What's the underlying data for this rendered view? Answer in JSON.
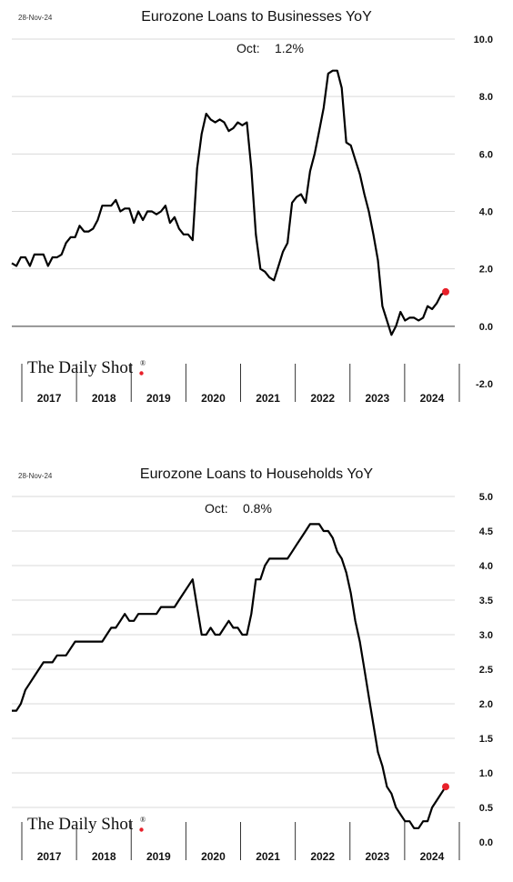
{
  "charts": [
    {
      "date": "28-Nov-24",
      "title": "Eurozone Loans to Businesses YoY",
      "latest_label": "Oct:",
      "latest_value": "1.2%",
      "logo": "The Daily Shot",
      "logo_mark": "®"
    },
    {
      "date": "28-Nov-24",
      "title": "Eurozone Loans to Households YoY",
      "latest_label": "Oct:",
      "latest_value": "0.8%",
      "logo": "The Daily Shot",
      "logo_mark": "®"
    }
  ],
  "colors": {
    "line": "#000000",
    "marker": "#e8202a",
    "grid": "#d9d9d9"
  },
  "chart_data": [
    {
      "type": "line",
      "title": "Eurozone Loans to Businesses YoY",
      "x_categories": [
        "2017",
        "2018",
        "2019",
        "2020",
        "2021",
        "2022",
        "2023",
        "2024"
      ],
      "ylim": [
        -2.0,
        10.0
      ],
      "y_ticks": [
        "-2.0",
        "0.0",
        "2.0",
        "4.0",
        "6.0",
        "8.0",
        "10.0"
      ],
      "grid": true,
      "series": [
        {
          "start": "2016-09",
          "frequency": "monthly",
          "values": [
            2.2,
            2.1,
            2.4,
            2.4,
            2.1,
            2.5,
            2.5,
            2.5,
            2.1,
            2.4,
            2.4,
            2.5,
            2.9,
            3.1,
            3.1,
            3.5,
            3.3,
            3.3,
            3.4,
            3.7,
            4.2,
            4.2,
            4.2,
            4.4,
            4.0,
            4.1,
            4.1,
            3.6,
            4.0,
            3.7,
            4.0,
            4.0,
            3.9,
            4.0,
            4.2,
            3.6,
            3.8,
            3.4,
            3.2,
            3.2,
            3.0,
            5.5,
            6.7,
            7.4,
            7.2,
            7.1,
            7.2,
            7.1,
            6.8,
            6.9,
            7.1,
            7.0,
            7.1,
            5.5,
            3.2,
            2.0,
            1.9,
            1.7,
            1.6,
            2.1,
            2.6,
            2.9,
            4.3,
            4.5,
            4.6,
            4.3,
            5.4,
            6.0,
            6.8,
            7.6,
            8.8,
            8.9,
            8.9,
            8.3,
            6.4,
            6.3,
            5.8,
            5.3,
            4.6,
            4.0,
            3.2,
            2.3,
            0.7,
            0.2,
            -0.3,
            0.0,
            0.5,
            0.2,
            0.3,
            0.3,
            0.2,
            0.3,
            0.7,
            0.6,
            0.8,
            1.1,
            1.2
          ]
        }
      ],
      "latest_point": {
        "x": "2024-10",
        "y": 1.2
      }
    },
    {
      "type": "line",
      "title": "Eurozone Loans to Households YoY",
      "x_categories": [
        "2017",
        "2018",
        "2019",
        "2020",
        "2021",
        "2022",
        "2023",
        "2024"
      ],
      "ylim": [
        0.0,
        5.0
      ],
      "y_ticks": [
        "0.0",
        "0.5",
        "1.0",
        "1.5",
        "2.0",
        "2.5",
        "3.0",
        "3.5",
        "4.0",
        "4.5",
        "5.0"
      ],
      "grid": true,
      "series": [
        {
          "start": "2016-09",
          "frequency": "monthly",
          "values": [
            1.9,
            1.9,
            2.0,
            2.2,
            2.3,
            2.4,
            2.5,
            2.6,
            2.6,
            2.6,
            2.7,
            2.7,
            2.7,
            2.8,
            2.9,
            2.9,
            2.9,
            2.9,
            2.9,
            2.9,
            2.9,
            3.0,
            3.1,
            3.1,
            3.2,
            3.3,
            3.2,
            3.2,
            3.3,
            3.3,
            3.3,
            3.3,
            3.3,
            3.4,
            3.4,
            3.4,
            3.4,
            3.5,
            3.6,
            3.7,
            3.8,
            3.4,
            3.0,
            3.0,
            3.1,
            3.0,
            3.0,
            3.1,
            3.2,
            3.1,
            3.1,
            3.0,
            3.0,
            3.3,
            3.8,
            3.8,
            4.0,
            4.1,
            4.1,
            4.1,
            4.1,
            4.1,
            4.2,
            4.3,
            4.4,
            4.5,
            4.6,
            4.6,
            4.6,
            4.5,
            4.5,
            4.4,
            4.2,
            4.1,
            3.9,
            3.6,
            3.2,
            2.9,
            2.5,
            2.1,
            1.7,
            1.3,
            1.1,
            0.8,
            0.7,
            0.5,
            0.4,
            0.3,
            0.3,
            0.2,
            0.2,
            0.3,
            0.3,
            0.5,
            0.6,
            0.7,
            0.8
          ]
        }
      ],
      "latest_point": {
        "x": "2024-10",
        "y": 0.8
      }
    }
  ]
}
